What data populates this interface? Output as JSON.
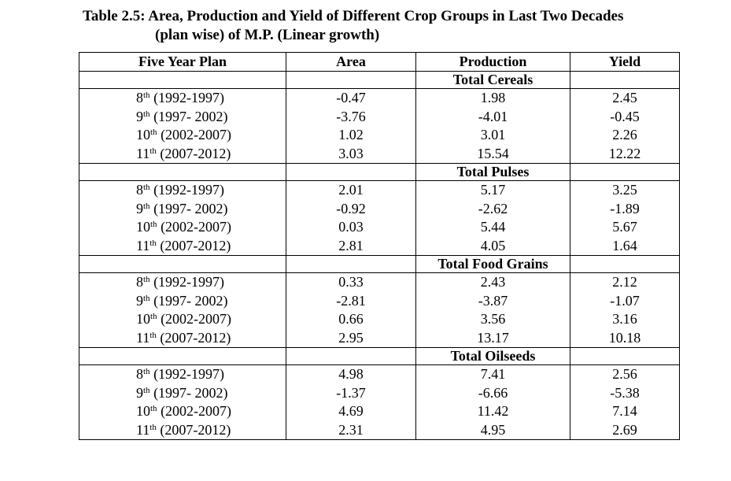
{
  "caption": {
    "line1": "Table 2.5: Area, Production and Yield of Different Crop Groups in Last Two Decades",
    "line2": "(plan wise) of M.P. (Linear growth)"
  },
  "table": {
    "headers": {
      "plan": "Five Year Plan",
      "area": "Area",
      "production": "Production",
      "yield": "Yield"
    },
    "groups": [
      {
        "name": "Total Cereals",
        "rows": [
          {
            "ord": "8",
            "sup": "th",
            "period": " (1992-1997)",
            "area": "-0.47",
            "production": "1.98",
            "yield": "2.45"
          },
          {
            "ord": "9",
            "sup": "th",
            "period": " (1997- 2002)",
            "area": "-3.76",
            "production": "-4.01",
            "yield": "-0.45"
          },
          {
            "ord": "10",
            "sup": "th",
            "period": " (2002-2007)",
            "area": "1.02",
            "production": "3.01",
            "yield": "2.26"
          },
          {
            "ord": "11",
            "sup": "th",
            "period": " (2007-2012)",
            "area": "3.03",
            "production": "15.54",
            "yield": "12.22"
          }
        ]
      },
      {
        "name": "Total Pulses",
        "rows": [
          {
            "ord": "8",
            "sup": "th",
            "period": " (1992-1997)",
            "area": "2.01",
            "production": "5.17",
            "yield": "3.25"
          },
          {
            "ord": "9",
            "sup": "th",
            "period": " (1997- 2002)",
            "area": "-0.92",
            "production": "-2.62",
            "yield": "-1.89"
          },
          {
            "ord": "10",
            "sup": "th",
            "period": " (2002-2007)",
            "area": "0.03",
            "production": "5.44",
            "yield": "5.67"
          },
          {
            "ord": "11",
            "sup": "th",
            "period": " (2007-2012)",
            "area": "2.81",
            "production": "4.05",
            "yield": "1.64"
          }
        ]
      },
      {
        "name": "Total Food Grains",
        "rows": [
          {
            "ord": "8",
            "sup": "th",
            "period": " (1992-1997)",
            "area": "0.33",
            "production": "2.43",
            "yield": "2.12"
          },
          {
            "ord": "9",
            "sup": "th",
            "period": " (1997- 2002)",
            "area": "-2.81",
            "production": "-3.87",
            "yield": "-1.07"
          },
          {
            "ord": "10",
            "sup": "th",
            "period": " (2002-2007)",
            "area": "0.66",
            "production": "3.56",
            "yield": "3.16"
          },
          {
            "ord": "11",
            "sup": "th",
            "period": " (2007-2012)",
            "area": "2.95",
            "production": "13.17",
            "yield": "10.18"
          }
        ]
      },
      {
        "name": "Total Oilseeds",
        "rows": [
          {
            "ord": "8",
            "sup": "th",
            "period": " (1992-1997)",
            "area": "4.98",
            "production": "7.41",
            "yield": "2.56"
          },
          {
            "ord": "9",
            "sup": "th",
            "period": " (1997- 2002)",
            "area": "-1.37",
            "production": "-6.66",
            "yield": "-5.38"
          },
          {
            "ord": "10",
            "sup": "th",
            "period": " (2002-2007)",
            "area": "4.69",
            "production": "11.42",
            "yield": "7.14"
          },
          {
            "ord": "11",
            "sup": "th",
            "period": " (2007-2012)",
            "area": "2.31",
            "production": "4.95",
            "yield": "2.69"
          }
        ]
      }
    ]
  }
}
